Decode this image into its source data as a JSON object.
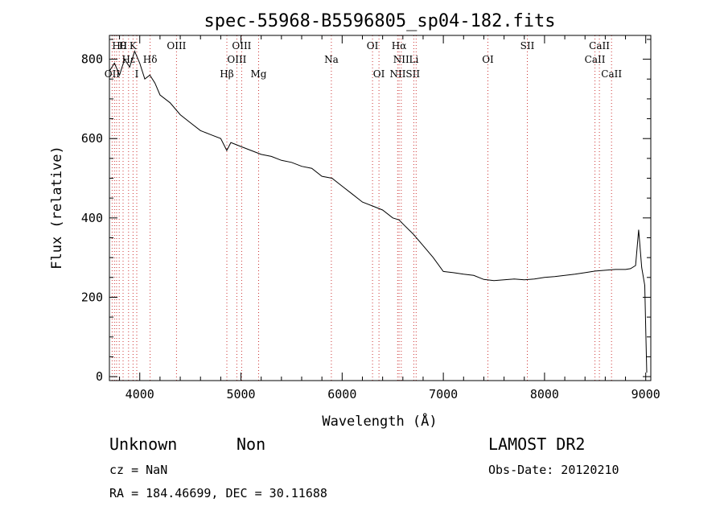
{
  "chart_data": {
    "type": "line",
    "title": "spec-55968-B5596805_sp04-182.fits",
    "xlabel": "Wavelength (Å)",
    "ylabel": "Flux (relative)",
    "xlim": [
      3700,
      9050
    ],
    "ylim": [
      -10,
      860
    ],
    "x_ticks": [
      4000,
      5000,
      6000,
      7000,
      8000,
      9000
    ],
    "y_ticks": [
      0,
      200,
      400,
      600,
      800
    ],
    "grid": false,
    "line_color": "#000000",
    "marker_line_color": "#cc3333",
    "series": [
      {
        "x": [
          3700,
          3750,
          3800,
          3850,
          3900,
          3950,
          4000,
          4050,
          4100,
          4150,
          4200,
          4300,
          4400,
          4500,
          4600,
          4700,
          4800,
          4860,
          4900,
          5000,
          5100,
          5200,
          5300,
          5400,
          5500,
          5600,
          5700,
          5800,
          5900,
          6000,
          6100,
          6200,
          6300,
          6400,
          6500,
          6563,
          6600,
          6700,
          6800,
          6900,
          7000,
          7100,
          7200,
          7300,
          7400,
          7500,
          7600,
          7700,
          7800,
          7900,
          8000,
          8100,
          8200,
          8300,
          8400,
          8500,
          8600,
          8700,
          8800,
          8850,
          8900,
          8930,
          8960,
          8990,
          9000,
          9010
        ],
        "y": [
          770,
          790,
          760,
          800,
          780,
          820,
          790,
          750,
          760,
          740,
          710,
          690,
          660,
          640,
          620,
          610,
          600,
          570,
          590,
          580,
          570,
          560,
          555,
          545,
          540,
          530,
          525,
          505,
          500,
          480,
          460,
          440,
          430,
          420,
          400,
          395,
          385,
          360,
          330,
          300,
          265,
          262,
          258,
          255,
          245,
          242,
          244,
          246,
          244,
          246,
          250,
          252,
          255,
          258,
          262,
          266,
          268,
          270,
          270,
          272,
          280,
          370,
          275,
          230,
          120,
          10
        ]
      }
    ],
    "spectral_lines": [
      {
        "label": "Hθ",
        "x": 3797,
        "row": 1
      },
      {
        "label": "H",
        "x": 3835,
        "row": 1
      },
      {
        "label": "K",
        "x": 3934,
        "row": 1
      },
      {
        "label": "Hε",
        "x": 3889,
        "row": 2
      },
      {
        "label": "Hδ",
        "x": 4102,
        "row": 2
      },
      {
        "label": "OII",
        "x": 3727,
        "row": 3
      },
      {
        "label": "I",
        "x": 3970,
        "row": 3
      },
      {
        "label": "OIII",
        "x": 4363,
        "row": 1
      },
      {
        "label": "OIII",
        "x": 5007,
        "row": 1
      },
      {
        "label": "OIII",
        "x": 4959,
        "row": 2
      },
      {
        "label": "Hβ",
        "x": 4861,
        "row": 3
      },
      {
        "label": "Mg",
        "x": 5175,
        "row": 3
      },
      {
        "label": "Na",
        "x": 5893,
        "row": 2
      },
      {
        "label": "OI",
        "x": 6300,
        "row": 1
      },
      {
        "label": "OI",
        "x": 6364,
        "row": 3
      },
      {
        "label": "Hα",
        "x": 6563,
        "row": 1
      },
      {
        "label": "NII",
        "x": 6584,
        "row": 2
      },
      {
        "label": "NIISII",
        "x": 6620,
        "row": 3
      },
      {
        "label": "Li",
        "x": 6708,
        "row": 2
      },
      {
        "label": "OI",
        "x": 7440,
        "row": 2
      },
      {
        "label": "SII",
        "x": 7830,
        "row": 1
      },
      {
        "label": "CaII",
        "x": 8542,
        "row": 1
      },
      {
        "label": "CaII",
        "x": 8498,
        "row": 2
      },
      {
        "label": "CaII",
        "x": 8662,
        "row": 3
      }
    ],
    "marker_x": [
      3727,
      3750,
      3771,
      3797,
      3835,
      3889,
      3934,
      3970,
      4102,
      4363,
      4861,
      4959,
      5007,
      5175,
      5893,
      6300,
      6364,
      6548,
      6563,
      6584,
      6708,
      6731,
      7440,
      7830,
      8498,
      8542,
      8662
    ]
  },
  "info": {
    "class_label": "Unknown",
    "subclass_label": "Non",
    "survey": "LAMOST DR2",
    "cz": "cz = NaN",
    "obs_date": "Obs-Date: 20120210",
    "coords": "RA = 184.46699, DEC =  30.11688"
  }
}
